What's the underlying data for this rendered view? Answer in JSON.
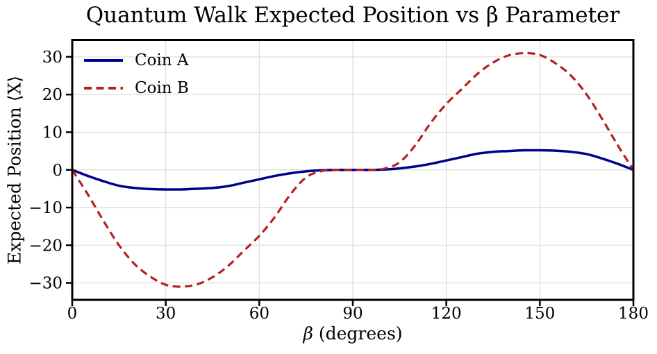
{
  "chart_data": {
    "type": "line",
    "title": "Quantum Walk Expected Position vs β Parameter",
    "xlabel": "β (degrees)",
    "xlabel_symbol": "β",
    "xlabel_rest": " (degrees)",
    "ylabel": "Expected Position ⟨X⟩",
    "xlim": [
      0,
      180
    ],
    "ylim": [
      -34.5,
      34.5
    ],
    "grid": true,
    "legend_position": "upper left",
    "xticks": [
      0,
      30,
      60,
      90,
      120,
      150,
      180
    ],
    "yticks": [
      -30,
      -20,
      -10,
      0,
      10,
      20,
      30
    ],
    "xtick_labels": [
      "0",
      "30",
      "60",
      "90",
      "120",
      "150",
      "180"
    ],
    "ytick_labels": [
      "−30",
      "−20",
      "−10",
      "0",
      "10",
      "20",
      "30"
    ],
    "x": [
      0,
      5,
      10,
      15,
      20,
      25,
      30,
      35,
      40,
      45,
      50,
      55,
      60,
      65,
      70,
      75,
      80,
      85,
      90,
      95,
      100,
      105,
      110,
      115,
      120,
      125,
      130,
      135,
      140,
      145,
      150,
      155,
      160,
      165,
      170,
      175,
      180
    ],
    "series": [
      {
        "name": "Coin A",
        "style": "solid",
        "color": "#00008b",
        "values": [
          0,
          -1.6,
          -3.0,
          -4.2,
          -4.8,
          -5.1,
          -5.2,
          -5.2,
          -5.0,
          -4.8,
          -4.3,
          -3.4,
          -2.5,
          -1.6,
          -0.9,
          -0.4,
          -0.1,
          0,
          0,
          0,
          0.1,
          0.4,
          0.9,
          1.6,
          2.5,
          3.4,
          4.3,
          4.8,
          5.0,
          5.2,
          5.2,
          5.1,
          4.8,
          4.2,
          3.0,
          1.6,
          0
        ]
      },
      {
        "name": "Coin B",
        "style": "dashed",
        "color": "#b22222",
        "values": [
          0,
          -6.5,
          -13.5,
          -20.0,
          -25.0,
          -28.3,
          -30.5,
          -31.0,
          -30.4,
          -28.5,
          -25.5,
          -21.5,
          -17.5,
          -12.5,
          -6.5,
          -2.0,
          -0.3,
          0,
          0,
          0,
          0.3,
          2.0,
          6.5,
          12.5,
          17.5,
          21.5,
          25.5,
          28.5,
          30.4,
          31.0,
          30.5,
          28.3,
          25.0,
          20.0,
          13.5,
          6.5,
          0
        ]
      }
    ],
    "colors": {
      "background": "#ffffff",
      "grid": "#dcdcdc",
      "spine": "#000000",
      "text": "#000000"
    }
  }
}
